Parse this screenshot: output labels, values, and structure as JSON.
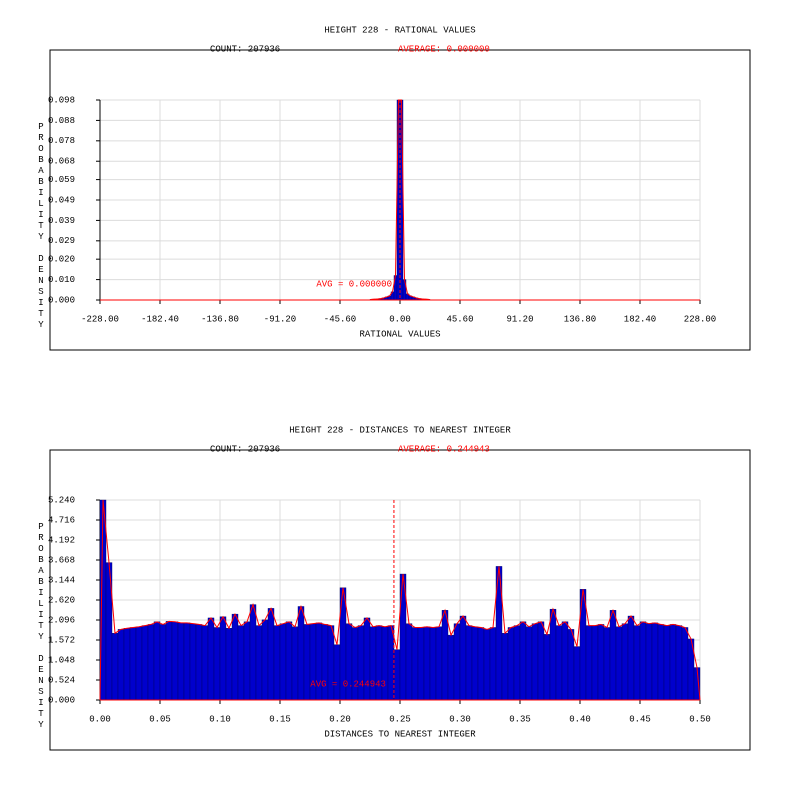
{
  "chart_data": [
    {
      "type": "histogram",
      "title": "HEIGHT 228 - RATIONAL VALUES",
      "count_label": "COUNT: 207936",
      "average_label": "AVERAGE: 0.000000",
      "annotation": "AVG = 0.000000",
      "average": 0,
      "xlabel": "RATIONAL VALUES",
      "ylabel": "PROBABILITY DENSITY",
      "xlim": [
        -228,
        228
      ],
      "xticks": [
        {
          "value": -228,
          "label": "-228.00"
        },
        {
          "value": -182.4,
          "label": "-182.40"
        },
        {
          "value": -136.8,
          "label": "-136.80"
        },
        {
          "value": -91.2,
          "label": "-91.20"
        },
        {
          "value": -45.6,
          "label": "-45.60"
        },
        {
          "value": 0,
          "label": "0.00"
        },
        {
          "value": 45.6,
          "label": "45.60"
        },
        {
          "value": 91.2,
          "label": "91.20"
        },
        {
          "value": 136.8,
          "label": "136.80"
        },
        {
          "value": 182.4,
          "label": "182.40"
        },
        {
          "value": 228,
          "label": "228.00"
        }
      ],
      "ylim": [
        0,
        0.098
      ],
      "yticks": [
        {
          "value": 0,
          "label": "0.000"
        },
        {
          "value": 0.01,
          "label": "0.010"
        },
        {
          "value": 0.02,
          "label": "0.020"
        },
        0.029,
        0.039,
        0.049,
        0.059,
        0.068,
        0.078,
        0.088,
        0.098
      ],
      "grid": true,
      "color": "#0000cc",
      "line_color": "#ff0000",
      "bins": [
        -22.8,
        -20.52,
        -18.24,
        -15.96,
        -13.68,
        -11.4,
        -9.12,
        -6.84,
        -4.56,
        -2.28,
        0,
        2.28,
        4.56,
        6.84,
        9.12,
        11.4,
        13.68,
        15.96,
        18.24,
        20.52,
        22.8
      ],
      "counts": [
        0.0003,
        0.0004,
        0.0005,
        0.0007,
        0.001,
        0.0015,
        0.002,
        0.004,
        0.012,
        0.098,
        0.098,
        0.01,
        0.003,
        0.002,
        0.0015,
        0.001,
        0.0007,
        0.0005,
        0.0004,
        0.0003
      ]
    },
    {
      "type": "histogram",
      "title": "HEIGHT 228 - DISTANCES TO NEAREST INTEGER",
      "count_label": "COUNT: 207936",
      "average_label": "AVERAGE: 0.244943",
      "annotation": "AVG = 0.244943",
      "average": 0.244943,
      "xlabel": "DISTANCES TO NEAREST INTEGER",
      "ylabel": "PROBABILITY DENSITY",
      "xlim": [
        0,
        0.5
      ],
      "xticks": [
        {
          "value": 0,
          "label": "0.00"
        },
        0.05,
        {
          "value": 0.1,
          "label": "0.10"
        },
        0.15,
        {
          "value": 0.2,
          "label": "0.20"
        },
        0.25,
        {
          "value": 0.3,
          "label": "0.30"
        },
        0.35,
        {
          "value": 0.4,
          "label": "0.40"
        },
        0.45,
        {
          "value": 0.5,
          "label": "0.50"
        }
      ],
      "ylim": [
        0,
        5.24
      ],
      "yticks": [
        {
          "value": 0,
          "label": "0.000"
        },
        0.524,
        1.048,
        1.572,
        2.096,
        {
          "value": 2.62,
          "label": "2.620"
        },
        3.144,
        3.668,
        4.192,
        4.716,
        {
          "value": 5.24,
          "label": "5.240"
        }
      ],
      "grid": true,
      "color": "#0000cc",
      "line_color": "#ff0000",
      "bins": [
        0,
        0.005,
        0.01,
        0.015,
        0.02,
        0.025,
        0.03,
        0.035,
        0.04,
        0.045,
        0.05,
        0.055,
        0.06,
        0.065,
        0.07,
        0.075,
        0.08,
        0.085,
        0.09,
        0.095,
        0.1,
        0.105,
        0.11,
        0.115,
        0.12,
        0.125,
        0.13,
        0.135,
        0.14,
        0.145,
        0.15,
        0.155,
        0.16,
        0.165,
        0.17,
        0.175,
        0.18,
        0.185,
        0.19,
        0.195,
        0.2,
        0.205,
        0.21,
        0.215,
        0.22,
        0.225,
        0.23,
        0.235,
        0.24,
        0.245,
        0.25,
        0.255,
        0.26,
        0.265,
        0.27,
        0.275,
        0.28,
        0.285,
        0.29,
        0.295,
        0.3,
        0.305,
        0.31,
        0.315,
        0.32,
        0.325,
        0.33,
        0.335,
        0.34,
        0.345,
        0.35,
        0.355,
        0.36,
        0.365,
        0.37,
        0.375,
        0.38,
        0.385,
        0.39,
        0.395,
        0.4,
        0.405,
        0.41,
        0.415,
        0.42,
        0.425,
        0.43,
        0.435,
        0.44,
        0.445,
        0.45,
        0.455,
        0.46,
        0.465,
        0.47,
        0.475,
        0.48,
        0.485,
        0.49,
        0.495,
        0.5
      ],
      "counts": [
        5.24,
        3.6,
        1.75,
        1.85,
        1.88,
        1.9,
        1.92,
        1.95,
        1.98,
        2.05,
        1.98,
        2.06,
        2.05,
        2.02,
        2.02,
        2.0,
        1.98,
        1.95,
        2.15,
        1.9,
        2.18,
        1.88,
        2.25,
        1.95,
        2.05,
        2.5,
        1.95,
        2.1,
        2.4,
        1.95,
        2.0,
        2.05,
        1.92,
        2.45,
        1.98,
        2.0,
        2.02,
        1.98,
        1.95,
        1.45,
        2.94,
        2.0,
        1.9,
        1.95,
        2.15,
        1.92,
        1.95,
        1.92,
        1.95,
        1.32,
        3.3,
        2.0,
        1.9,
        1.9,
        1.92,
        1.9,
        1.92,
        2.35,
        1.7,
        2.0,
        2.2,
        1.95,
        1.92,
        1.9,
        1.85,
        1.9,
        3.5,
        1.75,
        1.9,
        1.95,
        2.05,
        1.92,
        2.0,
        2.05,
        1.72,
        2.38,
        1.95,
        2.05,
        1.85,
        1.4,
        2.9,
        1.95,
        1.95,
        1.98,
        1.9,
        2.35,
        1.92,
        2.0,
        2.2,
        1.95,
        2.05,
        2.0,
        2.02,
        1.98,
        1.95,
        1.98,
        1.95,
        1.9,
        1.6,
        0.85
      ]
    }
  ]
}
